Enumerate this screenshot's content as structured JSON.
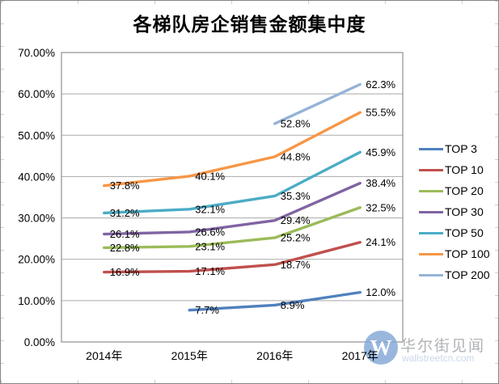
{
  "title": "各梯队房企销售金额集中度",
  "chart_data": {
    "type": "line",
    "title": "各梯队房企销售金额集中度",
    "categories": [
      "2014年",
      "2015年",
      "2016年",
      "2017年"
    ],
    "series": [
      {
        "name": "TOP 3",
        "color": "#4F81BD",
        "values": [
          null,
          7.7,
          8.9,
          12.0
        ],
        "labels": [
          null,
          "7.7%",
          "8.9%",
          "12.0%"
        ]
      },
      {
        "name": "TOP 10",
        "color": "#C0504D",
        "values": [
          16.9,
          17.1,
          18.7,
          24.1
        ],
        "labels": [
          "16.9%",
          "17.1%",
          "18.7%",
          "24.1%"
        ]
      },
      {
        "name": "TOP 20",
        "color": "#9BBB59",
        "values": [
          22.8,
          23.1,
          25.2,
          32.5
        ],
        "labels": [
          "22.8%",
          "23.1%",
          "25.2%",
          "32.5%"
        ]
      },
      {
        "name": "TOP 30",
        "color": "#8064A2",
        "values": [
          26.1,
          26.6,
          29.4,
          38.4
        ],
        "labels": [
          "26.1%",
          "26.6%",
          "29.4%",
          "38.4%"
        ]
      },
      {
        "name": "TOP 50",
        "color": "#4BACC6",
        "values": [
          31.2,
          32.1,
          35.3,
          45.9
        ],
        "labels": [
          "31.2%",
          "32.1%",
          "35.3%",
          "45.9%"
        ]
      },
      {
        "name": "TOP 100",
        "color": "#F79646",
        "values": [
          37.8,
          40.1,
          44.8,
          55.5
        ],
        "labels": [
          "37.8%",
          "40.1%",
          "44.8%",
          "55.5%"
        ]
      },
      {
        "name": "TOP 200",
        "color": "#95B3D7",
        "values": [
          null,
          null,
          52.8,
          62.3
        ],
        "labels": [
          null,
          null,
          "52.8%",
          "62.3%"
        ]
      }
    ],
    "ylim": [
      0,
      70
    ],
    "y_tick_step": 10,
    "y_tick_labels": [
      "0.00%",
      "10.00%",
      "20.00%",
      "30.00%",
      "40.00%",
      "50.00%",
      "60.00%",
      "70.00%"
    ],
    "grid": true,
    "legend_position": "right"
  },
  "colors": {
    "gridline": "#a9a9a9",
    "plot_border": "#8f8f8f",
    "label_text": "#000000"
  },
  "watermark": {
    "logo_letter": "W",
    "name": "华尔街见闻",
    "domain": "wallstreetcn.com"
  }
}
